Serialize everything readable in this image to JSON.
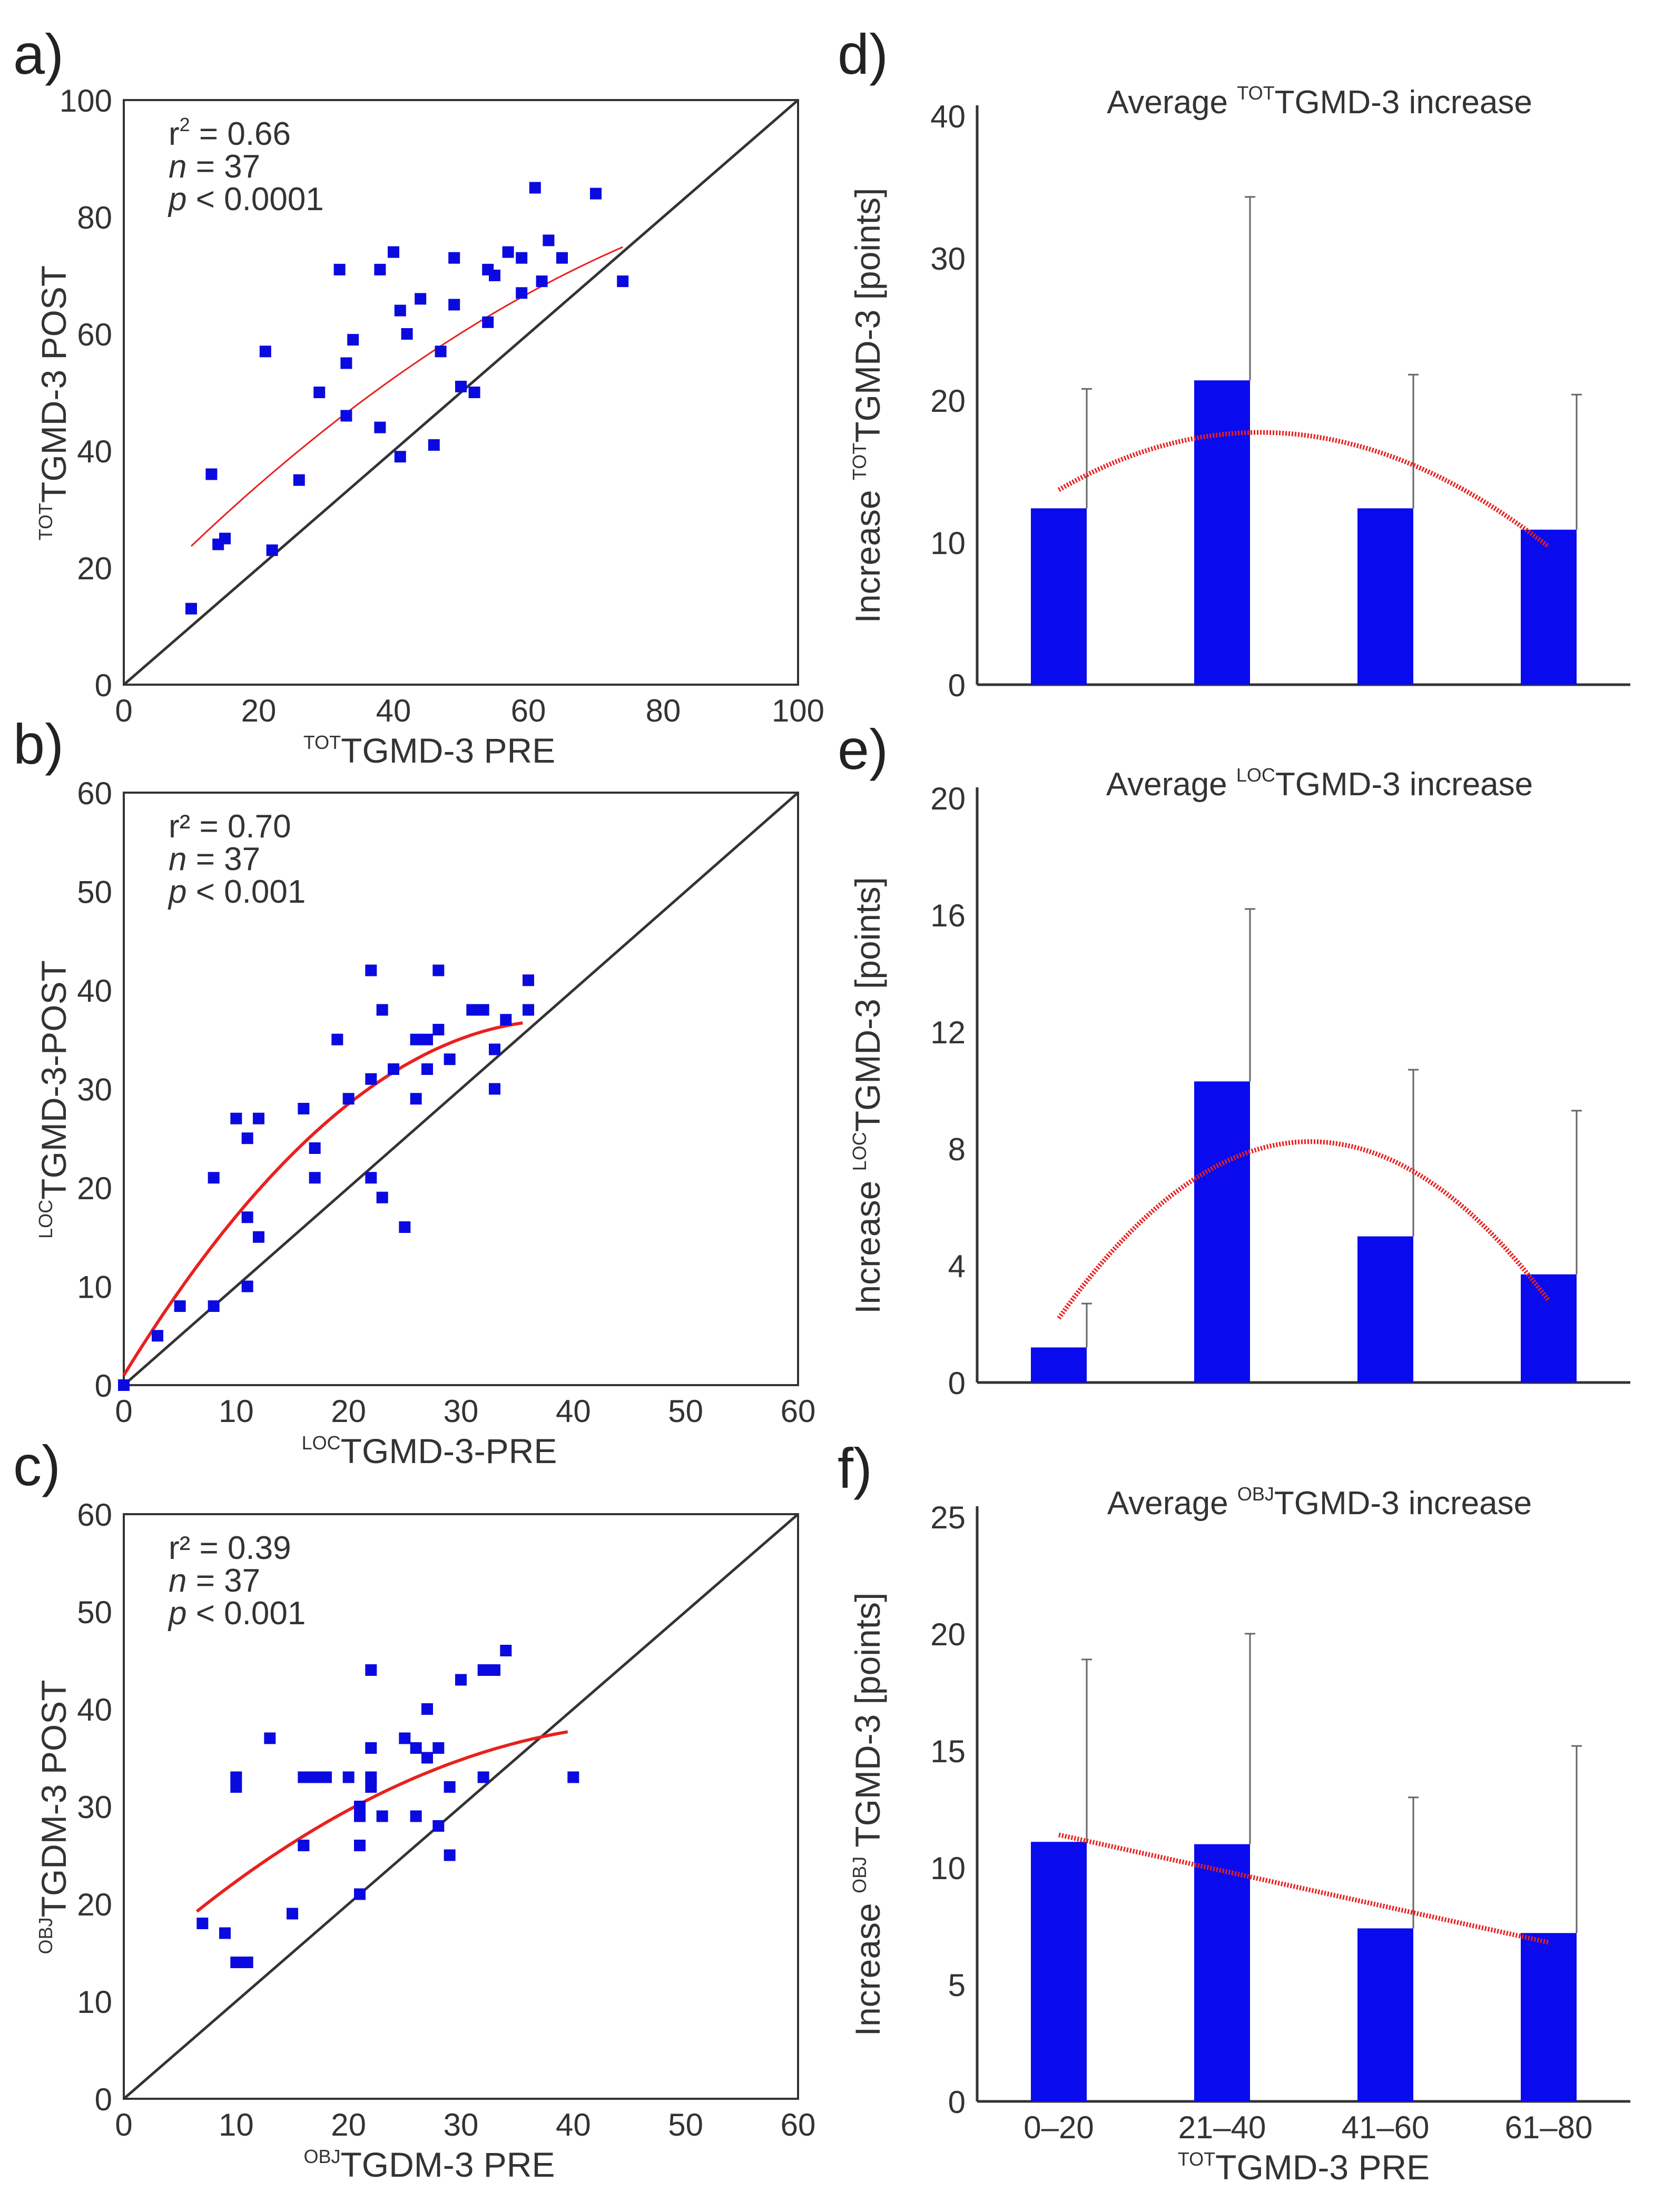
{
  "chart_data": [
    {
      "id": "a",
      "type": "scatter",
      "panel_label": "a)",
      "xlabel_sup": "TOT",
      "xlabel": "TGMD-3 PRE",
      "ylabel_sup": "TOT",
      "ylabel": "TGMD-3 POST",
      "xlim": [
        0,
        100
      ],
      "ylim": [
        0,
        100
      ],
      "xticks": [
        0,
        20,
        40,
        60,
        80,
        100
      ],
      "yticks": [
        0,
        20,
        40,
        60,
        80,
        100
      ],
      "stats": {
        "r2_label": "r",
        "r2_exp": "2",
        "r2_value": " = 0.66",
        "n_label": "n",
        "n_value": " = 37",
        "p_label": "p",
        "p_value": " < 0.0001"
      },
      "points": [
        [
          10,
          13
        ],
        [
          13,
          36
        ],
        [
          14,
          24
        ],
        [
          15,
          25
        ],
        [
          21,
          57
        ],
        [
          22,
          23
        ],
        [
          26,
          35
        ],
        [
          29,
          50
        ],
        [
          32,
          71
        ],
        [
          33,
          55
        ],
        [
          33,
          46
        ],
        [
          34,
          59
        ],
        [
          38,
          71
        ],
        [
          38,
          44
        ],
        [
          40,
          74
        ],
        [
          41,
          39
        ],
        [
          41,
          64
        ],
        [
          42,
          60
        ],
        [
          44,
          66
        ],
        [
          46,
          41
        ],
        [
          47,
          57
        ],
        [
          49,
          65
        ],
        [
          49,
          73
        ],
        [
          50,
          51
        ],
        [
          52,
          50
        ],
        [
          54,
          62
        ],
        [
          54,
          71
        ],
        [
          55,
          70
        ],
        [
          57,
          74
        ],
        [
          59,
          73
        ],
        [
          59,
          67
        ],
        [
          61,
          85
        ],
        [
          62,
          69
        ],
        [
          63,
          76
        ],
        [
          65,
          73
        ],
        [
          70,
          84
        ],
        [
          74,
          69
        ]
      ],
      "fit": {
        "x_range": [
          10,
          74
        ],
        "coef": [
          12.26,
          1.19,
          -0.00465
        ]
      }
    },
    {
      "id": "b",
      "type": "scatter",
      "panel_label": "b)",
      "xlabel_sup": "LOC",
      "xlabel": "TGMD-3-PRE",
      "ylabel_sup": "LOC",
      "ylabel": "TGMD-3-POST",
      "xlim": [
        0,
        60
      ],
      "ylim": [
        0,
        60
      ],
      "xticks": [
        0,
        10,
        20,
        30,
        40,
        50,
        60
      ],
      "yticks": [
        0,
        10,
        20,
        30,
        40,
        50,
        60
      ],
      "stats": {
        "r2_label": "r² = 0.70",
        "n_label": "n",
        "n_value": " = 37",
        "p_label": "p",
        "p_value": " < 0.001"
      },
      "points": [
        [
          0,
          0
        ],
        [
          3,
          5
        ],
        [
          5,
          8
        ],
        [
          8,
          8
        ],
        [
          8,
          21
        ],
        [
          10,
          27
        ],
        [
          11,
          10
        ],
        [
          11,
          17
        ],
        [
          11,
          25
        ],
        [
          12,
          15
        ],
        [
          12,
          27
        ],
        [
          16,
          28
        ],
        [
          17,
          21
        ],
        [
          17,
          24
        ],
        [
          19,
          35
        ],
        [
          20,
          29
        ],
        [
          22,
          42
        ],
        [
          22,
          21
        ],
        [
          22,
          31
        ],
        [
          23,
          38
        ],
        [
          23,
          19
        ],
        [
          24,
          32
        ],
        [
          25,
          16
        ],
        [
          26,
          29
        ],
        [
          26,
          35
        ],
        [
          27,
          35
        ],
        [
          27,
          32
        ],
        [
          28,
          42
        ],
        [
          28,
          36
        ],
        [
          29,
          33
        ],
        [
          31,
          38
        ],
        [
          32,
          38
        ],
        [
          33,
          34
        ],
        [
          33,
          30
        ],
        [
          34,
          37
        ],
        [
          36,
          41
        ],
        [
          36,
          38
        ]
      ],
      "fit": {
        "x_range": [
          0,
          35.5
        ],
        "coef": [
          1,
          1.85,
          -0.0238
        ]
      }
    },
    {
      "id": "c",
      "type": "scatter",
      "panel_label": "c)",
      "xlabel_sup": "OBJ",
      "xlabel": "TGDM-3 PRE",
      "ylabel_sup": "OBJ",
      "ylabel": "TGDM-3 POST",
      "xlim": [
        0,
        60
      ],
      "ylim": [
        0,
        60
      ],
      "xticks": [
        0,
        10,
        20,
        30,
        40,
        50,
        60
      ],
      "yticks": [
        0,
        10,
        20,
        30,
        40,
        50,
        60
      ],
      "stats": {
        "r2_label": "r² = 0.39",
        "n_label": "n",
        "n_value": " = 37",
        "p_label": "p",
        "p_value": " < 0.001"
      },
      "points": [
        [
          7,
          18
        ],
        [
          9,
          17
        ],
        [
          10,
          14
        ],
        [
          10,
          32
        ],
        [
          10,
          33
        ],
        [
          11,
          14
        ],
        [
          13,
          37
        ],
        [
          15,
          19
        ],
        [
          16,
          26
        ],
        [
          17,
          33
        ],
        [
          18,
          33
        ],
        [
          20,
          33
        ],
        [
          21,
          21
        ],
        [
          21,
          29
        ],
        [
          21,
          30
        ],
        [
          21,
          26
        ],
        [
          22,
          33
        ],
        [
          22,
          32
        ],
        [
          22,
          36
        ],
        [
          22,
          44
        ],
        [
          23,
          29
        ],
        [
          25,
          37
        ],
        [
          26,
          36
        ],
        [
          26,
          29
        ],
        [
          27,
          35
        ],
        [
          27,
          40
        ],
        [
          28,
          36
        ],
        [
          28,
          28
        ],
        [
          29,
          25
        ],
        [
          29,
          32
        ],
        [
          30,
          43
        ],
        [
          32,
          33
        ],
        [
          32,
          44
        ],
        [
          33,
          44
        ],
        [
          34,
          46
        ],
        [
          40,
          33
        ],
        [
          16,
          33
        ]
      ],
      "fit": {
        "x_range": [
          6.5,
          39.5
        ],
        "coef": [
          12.8,
          1.06,
          -0.0109
        ]
      }
    },
    {
      "id": "d",
      "type": "bar",
      "panel_label": "d)",
      "title_pre": "Average ",
      "title_sup": "TOT",
      "title_post": "TGMD-3 increase",
      "ylabel_pre": "Increase ",
      "ylabel_sup": "TOT",
      "ylabel_post": "TGMD-3 [points]",
      "categories": [
        "0–20",
        "21–40",
        "41–60",
        "61–80"
      ],
      "values": [
        12.4,
        21.4,
        12.4,
        10.9
      ],
      "error_upper": [
        20.8,
        34.3,
        21.8,
        20.4
      ],
      "ylim": [
        0,
        40
      ],
      "yticks": [
        0,
        10,
        20,
        30,
        40
      ],
      "trend": {
        "type": "quadratic",
        "values_at_categories": [
          13.7,
          17.6,
          16.2,
          9.7
        ]
      }
    },
    {
      "id": "e",
      "type": "bar",
      "panel_label": "e)",
      "title_pre": "Average ",
      "title_sup": "LOC",
      "title_post": "TGMD-3 increase",
      "ylabel_pre": "Increase ",
      "ylabel_sup": "LOC",
      "ylabel_post": "TGMD-3 [points]",
      "categories": [
        "0–20",
        "21–40",
        "41–60",
        "61–80"
      ],
      "values": [
        1.2,
        10.3,
        5.0,
        3.7
      ],
      "error_upper": [
        2.7,
        16.2,
        10.7,
        9.3
      ],
      "ylim": [
        0,
        20
      ],
      "yticks": [
        0,
        4,
        8,
        12,
        16,
        20
      ],
      "trend": {
        "type": "quadratic",
        "values_at_categories": [
          2.2,
          7.5,
          7.7,
          2.8
        ]
      }
    },
    {
      "id": "f",
      "type": "bar",
      "panel_label": "f)",
      "title_pre": "Average ",
      "title_sup": "OBJ",
      "title_post": "TGMD-3 increase",
      "ylabel_pre": "Increase ",
      "ylabel_sup": "OBJ",
      "ylabel_post": " TGMD-3 [points]",
      "xlabel_sup": "TOT",
      "xlabel": "TGMD-3 PRE",
      "categories": [
        "0–20",
        "21–40",
        "41–60",
        "61–80"
      ],
      "values": [
        11.1,
        11.0,
        7.4,
        7.2
      ],
      "error_upper": [
        18.9,
        20.0,
        13.0,
        15.2
      ],
      "ylim": [
        0,
        25
      ],
      "yticks": [
        0,
        5,
        10,
        15,
        20,
        25
      ],
      "trend": {
        "type": "linear",
        "values_at_categories": [
          11.4,
          9.9,
          8.3,
          6.8
        ]
      }
    }
  ]
}
